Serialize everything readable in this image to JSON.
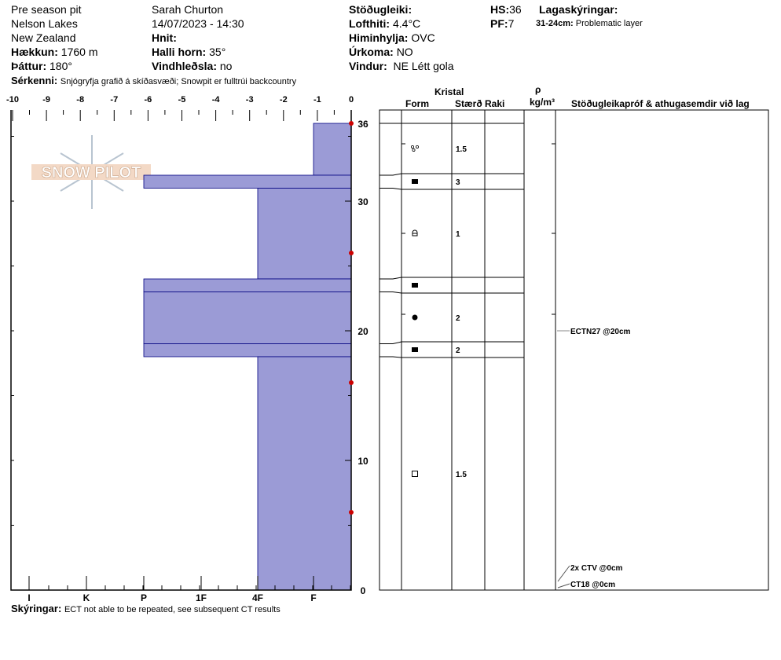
{
  "header": {
    "pit_name": "Pre season pit",
    "location": "Nelson Lakes",
    "country": "New Zealand",
    "elevation_label": "Hækkun:",
    "elevation": "1760 m",
    "aspect_label": "Þáttur:",
    "aspect": "180°",
    "observer": "Sarah Churton",
    "datetime": "14/07/2023 - 14:30",
    "coords_label": "Hnit:",
    "slope_label": "Halli horn:",
    "slope": "35°",
    "wind_loading_label": "Vindhleðsla:",
    "wind_loading": "no",
    "stability_label": "Stöðugleiki:",
    "air_temp_label": "Lofthiti:",
    "air_temp": "4.4°C",
    "sky_label": "Himinhylja:",
    "sky": "OVC",
    "precip_label": "Úrkoma:",
    "precip": "NO",
    "wind_label": "Vindur:",
    "wind": "NE Létt gola",
    "hs_label": "HS:",
    "hs": "36",
    "pf_label": "PF:",
    "pf": "7",
    "layer_notes_label": "Lagaskýringar:",
    "layer_note_range": "31-24cm:",
    "layer_note": "Problematic layer",
    "features_label": "Sérkenni:",
    "features": "Snjógryfja grafið á skíðasvæði;  Snowpit er fulltrúi backcountry",
    "comments_label": "Skýringar:",
    "comments": "ECT not able to be repeated, see subsequent CT results"
  },
  "logo_text": "SNOW PILOT",
  "table_headers": {
    "crystal": "Kristal",
    "form": "Form",
    "size": "Stærð",
    "moisture": "Raki",
    "rho": "ρ",
    "density_unit": "kg/m³",
    "tests": "Stöðugleikapróf & athugasemdir við lag"
  },
  "colors": {
    "bar": "#9b9bd6",
    "temp": "#cc0000"
  },
  "chart_data": {
    "type": "bar",
    "temp_axis": {
      "ticks": [
        "-10",
        "-9",
        "-8",
        "-7",
        "-6",
        "-5",
        "-4",
        "-3",
        "-2",
        "-1",
        "0"
      ],
      "range": [
        -10,
        0
      ]
    },
    "hardness_axis": {
      "ticks": [
        "I",
        "K",
        "P",
        "1F",
        "4F",
        "F"
      ]
    },
    "depth_axis": {
      "ticks": [
        "0",
        "10",
        "20",
        "30",
        "36"
      ],
      "range": [
        0,
        36
      ]
    },
    "layers": [
      {
        "top": 36,
        "bottom": 32,
        "hardness": "F",
        "form": "melt-clusters",
        "size": "1.5"
      },
      {
        "top": 32,
        "bottom": 31,
        "hardness": "P",
        "form": "ice",
        "size": "3"
      },
      {
        "top": 31,
        "bottom": 24,
        "hardness": "4F",
        "form": "faceted-rounded",
        "size": "1"
      },
      {
        "top": 24,
        "bottom": 23,
        "hardness": "P",
        "form": "ice",
        "size": ""
      },
      {
        "top": 23,
        "bottom": 19,
        "hardness": "P",
        "form": "melt-freeze",
        "size": "2"
      },
      {
        "top": 19,
        "bottom": 18,
        "hardness": "P",
        "form": "ice",
        "size": "2"
      },
      {
        "top": 18,
        "bottom": 0,
        "hardness": "4F",
        "form": "faceted",
        "size": "1.5"
      }
    ],
    "temperatures": [
      {
        "depth": 36,
        "temp": 0
      },
      {
        "depth": 26,
        "temp": 0
      },
      {
        "depth": 16,
        "temp": 0
      },
      {
        "depth": 6,
        "temp": 0
      }
    ],
    "tests": [
      {
        "depth": 20,
        "label": "ECTN27 @20cm"
      },
      {
        "depth": 0,
        "label": "2x CTV @0cm"
      },
      {
        "depth": 0,
        "label": "CT18 @0cm"
      }
    ]
  }
}
